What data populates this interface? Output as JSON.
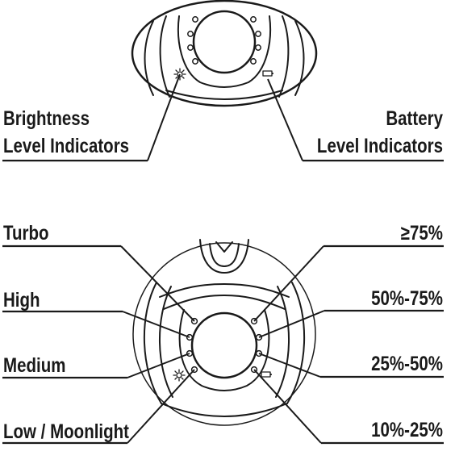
{
  "callouts": {
    "brightness": [
      "Brightness",
      "Level Indicators"
    ],
    "battery": [
      "Battery",
      "Level Indicators"
    ]
  },
  "brightness_levels": [
    "Turbo",
    "High",
    "Medium",
    "Low / Moonlight"
  ],
  "battery_levels": [
    "≥75%",
    "50%-75%",
    "25%-50%",
    "10%-25%"
  ],
  "icons": {
    "brightness": "sun-icon",
    "battery": "battery-icon"
  },
  "colors": {
    "ink": "#1a1a1a",
    "background": "#ffffff"
  }
}
